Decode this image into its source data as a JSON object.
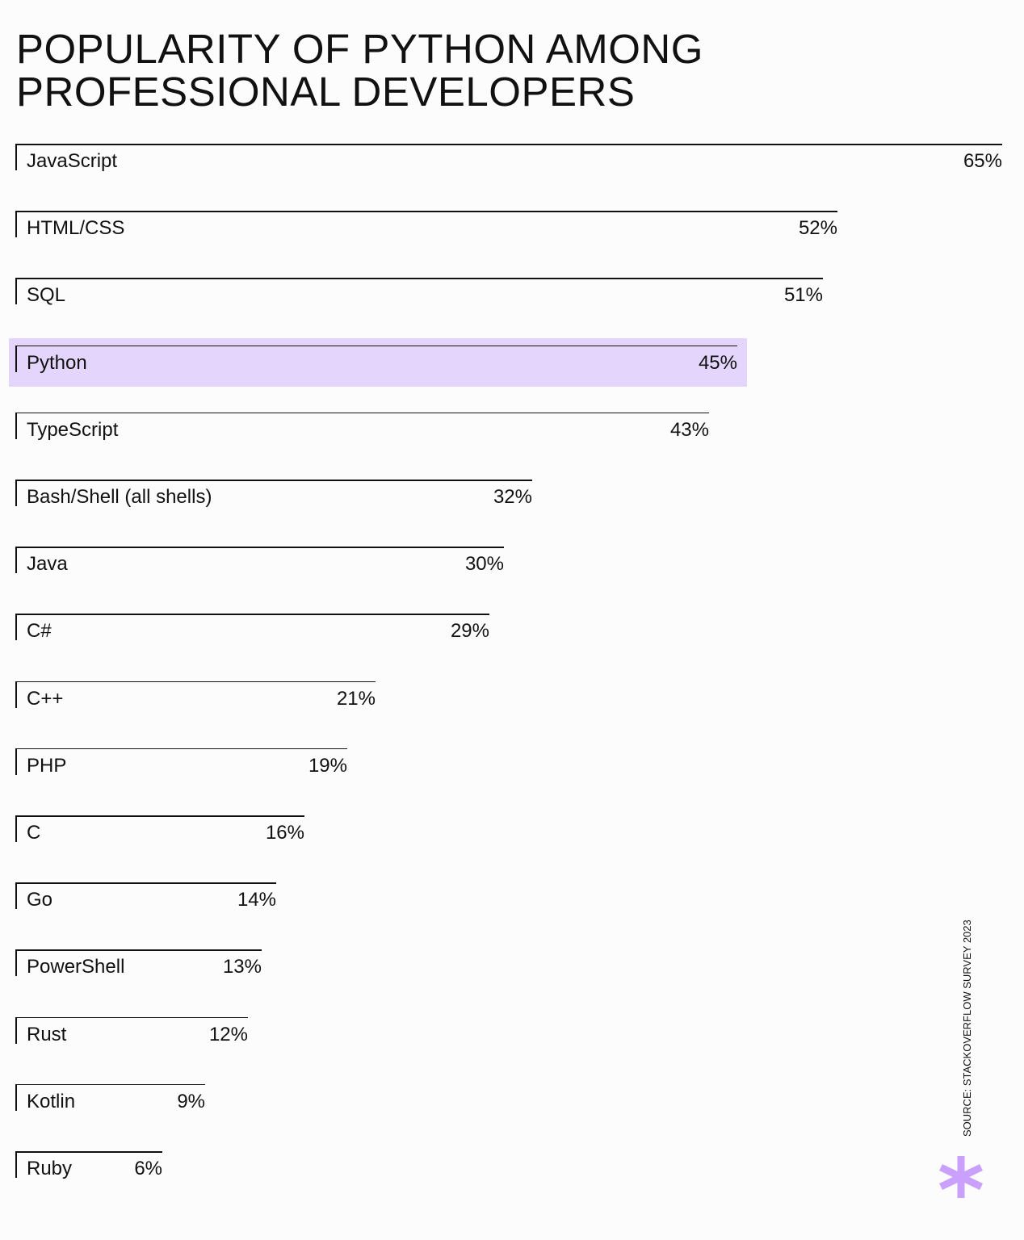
{
  "chart_data": {
    "type": "bar",
    "orientation": "horizontal",
    "title": "POPULARITY OF PYTHON AMONG PROFESSIONAL DEVELOPERS",
    "categories": [
      "JavaScript",
      "HTML/CSS",
      "SQL",
      "Python",
      "TypeScript",
      "Bash/Shell (all shells)",
      "Java",
      "C#",
      "C++",
      "PHP",
      "C",
      "Go",
      "PowerShell",
      "Rust",
      "Kotlin",
      "Ruby"
    ],
    "values": [
      65,
      52,
      51,
      45,
      43,
      32,
      30,
      29,
      21,
      19,
      16,
      14,
      13,
      12,
      9,
      6
    ],
    "value_labels": [
      "65%",
      "52%",
      "51%",
      "45%",
      "43%",
      "32%",
      "30%",
      "29%",
      "21%",
      "19%",
      "16%",
      "14%",
      "13%",
      "12%",
      "9%",
      "6%"
    ],
    "highlight": "Python",
    "highlight_color": "#e3d5fc",
    "source": "SOURCE: STACKOVERFLOW SURVEY 2023",
    "accent_color": "#c9a0fb",
    "grid": false
  }
}
